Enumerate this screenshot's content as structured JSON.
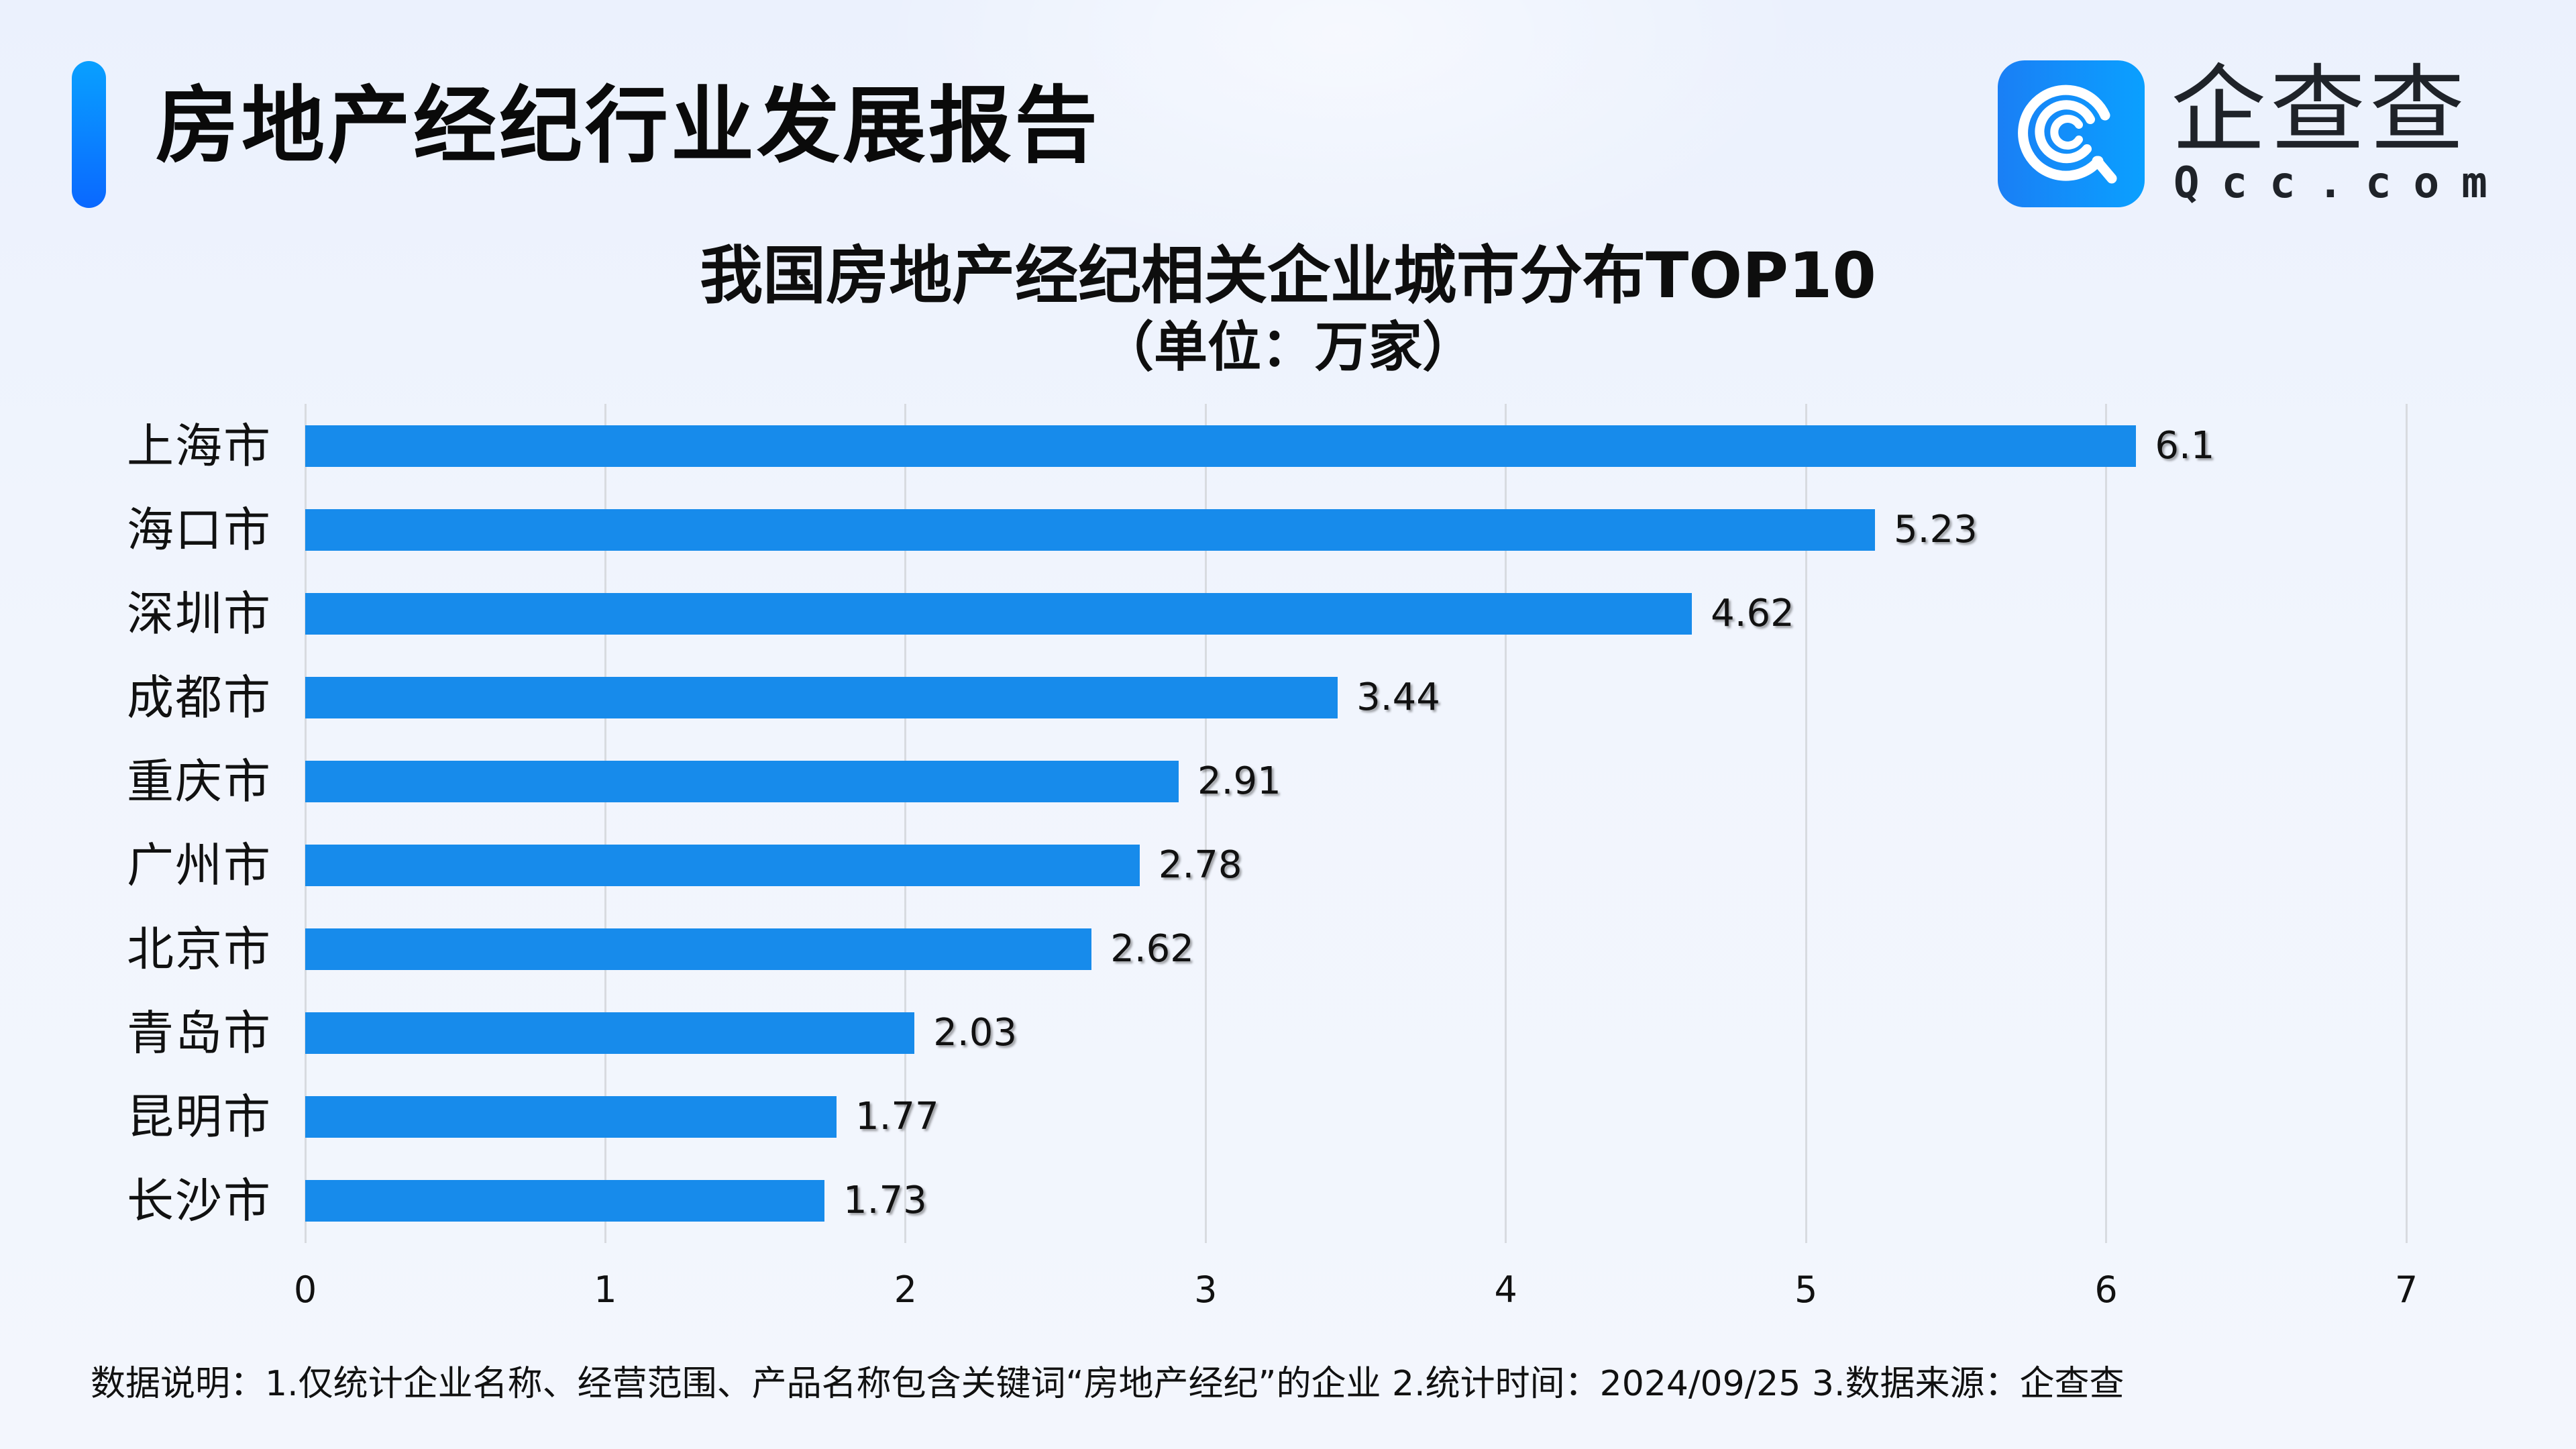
{
  "header": {
    "title": "房地产经纪行业发展报告",
    "accent_colors": [
      "#09a0ff",
      "#0a68ff"
    ]
  },
  "logo": {
    "icon": "qcc-logo-icon",
    "name_cn": "企查查",
    "name_en": "Qcc.com"
  },
  "chart_data": {
    "type": "bar",
    "orientation": "horizontal",
    "title": "我国房地产经纪相关企业城市分布TOP10",
    "subtitle": "（单位：万家）",
    "xlabel": "",
    "ylabel": "",
    "categories": [
      "上海市",
      "海口市",
      "深圳市",
      "成都市",
      "重庆市",
      "广州市",
      "北京市",
      "青岛市",
      "昆明市",
      "长沙市"
    ],
    "values": [
      6.1,
      5.23,
      4.62,
      3.44,
      2.91,
      2.78,
      2.62,
      2.03,
      1.77,
      1.73
    ],
    "value_labels": [
      "6.1",
      "5.23",
      "4.62",
      "3.44",
      "2.91",
      "2.78",
      "2.62",
      "2.03",
      "1.77",
      "1.73"
    ],
    "xlim": [
      0,
      7
    ],
    "xticks": [
      "0",
      "1",
      "2",
      "3",
      "4",
      "5",
      "6",
      "7"
    ],
    "grid": "vertical",
    "legend": "none",
    "bar_color": "#178beb"
  },
  "footer": {
    "note": "数据说明：1.仅统计企业名称、经营范围、产品名称包含关键词“房地产经纪”的企业   2.统计时间：2024/09/25    3.数据来源：企查查"
  }
}
